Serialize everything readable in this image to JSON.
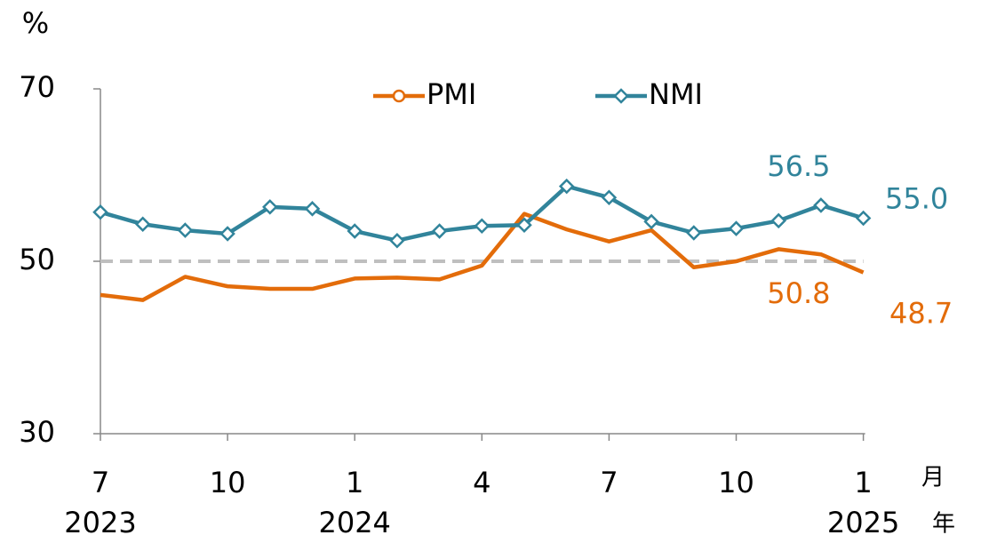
{
  "chart_data": {
    "type": "line",
    "y_label": "%",
    "x_unit": "月",
    "year_unit": "年",
    "categories": [
      "7",
      null,
      null,
      "10",
      null,
      null,
      "1",
      null,
      null,
      "4",
      null,
      null,
      "7",
      null,
      null,
      "10",
      null,
      null,
      "1"
    ],
    "years": [
      "2023",
      null,
      null,
      null,
      null,
      null,
      "2024",
      null,
      null,
      null,
      null,
      null,
      null,
      null,
      null,
      null,
      null,
      null,
      "2025"
    ],
    "series": [
      {
        "name": "PMI",
        "color": "#e36c0a",
        "marker": "circle",
        "show_markers": false,
        "values": [
          46.1,
          45.5,
          48.2,
          47.1,
          46.8,
          46.8,
          48.0,
          48.1,
          47.9,
          49.5,
          55.5,
          53.7,
          52.3,
          53.6,
          49.3,
          50.0,
          51.4,
          50.8,
          48.7
        ],
        "value_labels": [
          null,
          null,
          null,
          null,
          null,
          null,
          null,
          null,
          null,
          null,
          null,
          null,
          null,
          null,
          null,
          null,
          null,
          "50.8",
          "48.7"
        ]
      },
      {
        "name": "NMI",
        "color": "#31849b",
        "marker": "diamond",
        "show_markers": true,
        "values": [
          55.7,
          54.3,
          53.6,
          53.2,
          56.3,
          56.1,
          53.5,
          52.4,
          53.5,
          54.1,
          54.2,
          58.7,
          57.4,
          54.6,
          53.3,
          53.8,
          54.7,
          56.5,
          55.0
        ],
        "value_labels": [
          null,
          null,
          null,
          null,
          null,
          null,
          null,
          null,
          null,
          null,
          null,
          null,
          null,
          null,
          null,
          null,
          null,
          "56.5",
          "55.0"
        ]
      }
    ],
    "ylim": [
      30,
      70
    ],
    "yticks": [
      30,
      50,
      70
    ],
    "reference_line": 50,
    "legend": "top"
  }
}
